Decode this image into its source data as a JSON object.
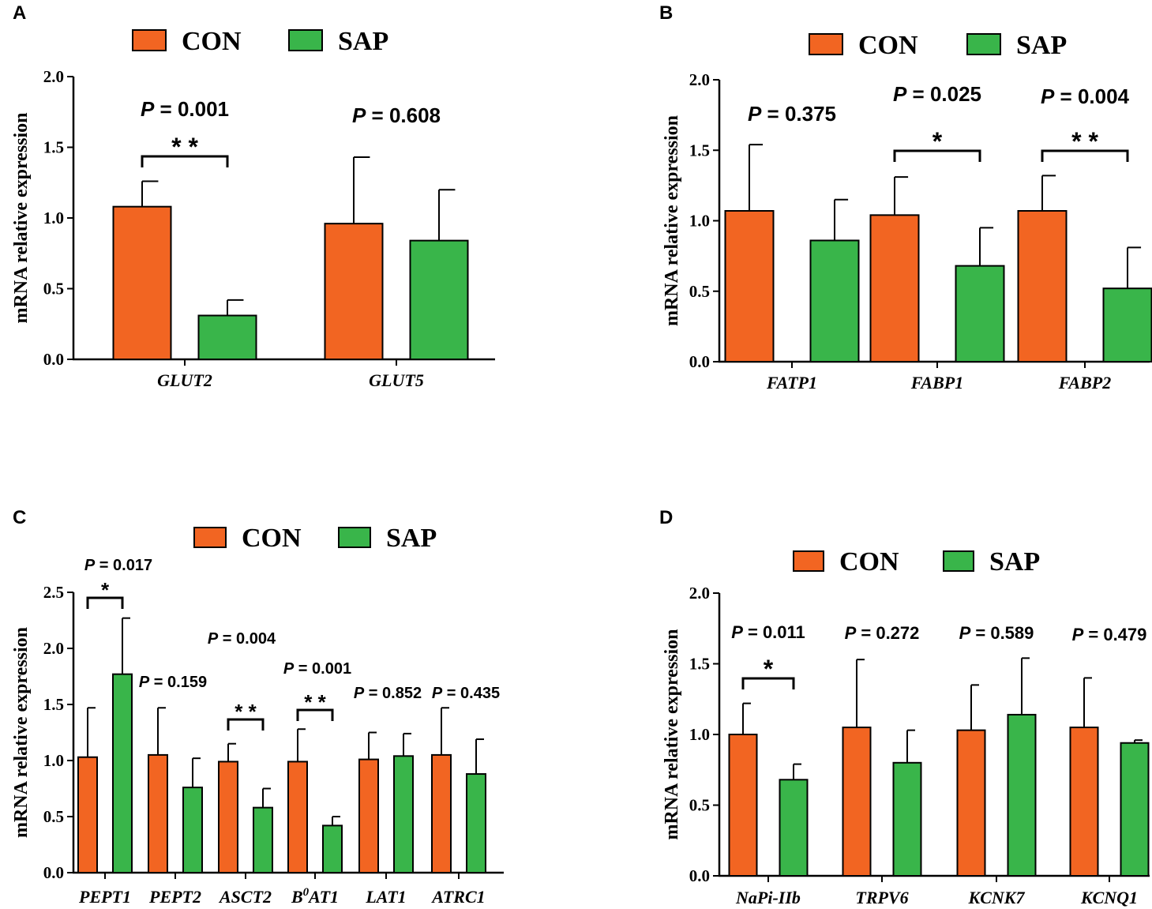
{
  "colors": {
    "con": "#f26522",
    "sap": "#39b54a",
    "stroke": "#000000"
  },
  "chart_data": [
    {
      "panel": "A",
      "type": "bar",
      "ylabel": "mRNA relative expression",
      "ylim": [
        0,
        2.0
      ],
      "yticks": [
        "0.0",
        "0.5",
        "1.0",
        "1.5",
        "2.0"
      ],
      "legend": [
        "CON",
        "SAP"
      ],
      "categories": [
        "GLUT2",
        "GLUT5"
      ],
      "series": [
        {
          "name": "CON",
          "values": [
            1.08,
            0.96
          ],
          "errors": [
            0.18,
            0.47
          ]
        },
        {
          "name": "SAP",
          "values": [
            0.31,
            0.84
          ],
          "errors": [
            0.11,
            0.36
          ]
        }
      ],
      "annotations": [
        {
          "category": 0,
          "p_prefix": "P",
          "p_value": "= 0.001",
          "stars": "**"
        },
        {
          "category": 1,
          "p_prefix": "P",
          "p_value": "= 0.608",
          "stars": ""
        }
      ]
    },
    {
      "panel": "B",
      "type": "bar",
      "ylabel": "mRNA relative expression",
      "ylim": [
        0,
        2.0
      ],
      "yticks": [
        "0.0",
        "0.5",
        "1.0",
        "1.5",
        "2.0"
      ],
      "legend": [
        "CON",
        "SAP"
      ],
      "categories": [
        "FATP1",
        "FABP1",
        "FABP2"
      ],
      "series": [
        {
          "name": "CON",
          "values": [
            1.07,
            1.04,
            1.07
          ],
          "errors": [
            0.47,
            0.27,
            0.25
          ]
        },
        {
          "name": "SAP",
          "values": [
            0.86,
            0.68,
            0.52
          ],
          "errors": [
            0.29,
            0.27,
            0.29
          ]
        }
      ],
      "annotations": [
        {
          "category": 0,
          "p_prefix": "P",
          "p_value": "= 0.375",
          "stars": ""
        },
        {
          "category": 1,
          "p_prefix": "P",
          "p_value": "= 0.025",
          "stars": "*"
        },
        {
          "category": 2,
          "p_prefix": "P",
          "p_value": "= 0.004",
          "stars": "**"
        }
      ]
    },
    {
      "panel": "C",
      "type": "bar",
      "ylabel": "mRNA relative expression",
      "ylim": [
        0,
        2.5
      ],
      "yticks": [
        "0.0",
        "0.5",
        "1.0",
        "1.5",
        "2.0",
        "2.5"
      ],
      "legend": [
        "CON",
        "SAP"
      ],
      "categories": [
        "PEPT1",
        "PEPT2",
        "ASCT2",
        "B",
        "LAT1",
        "ATRC1"
      ],
      "category_sup": {
        "3": {
          "sup": "0",
          "rest": "AT1"
        }
      },
      "series": [
        {
          "name": "CON",
          "values": [
            1.03,
            1.05,
            0.99,
            0.99,
            1.01,
            1.05
          ],
          "errors": [
            0.44,
            0.42,
            0.16,
            0.29,
            0.24,
            0.42
          ]
        },
        {
          "name": "SAP",
          "values": [
            1.77,
            0.76,
            0.58,
            0.42,
            1.04,
            0.88
          ],
          "errors": [
            0.5,
            0.26,
            0.17,
            0.08,
            0.2,
            0.31
          ]
        }
      ],
      "annotations": [
        {
          "category": 0,
          "p_prefix": "P",
          "p_value": "= 0.017",
          "stars": "*"
        },
        {
          "category": 1,
          "p_prefix": "P",
          "p_value": "= 0.159",
          "stars": ""
        },
        {
          "category": 2,
          "p_prefix": "P",
          "p_value": "= 0.004",
          "stars": "**"
        },
        {
          "category": 3,
          "p_prefix": "P",
          "p_value": "= 0.001",
          "stars": "**"
        },
        {
          "category": 4,
          "p_prefix": "P",
          "p_value": "= 0.852",
          "stars": ""
        },
        {
          "category": 5,
          "p_prefix": "P",
          "p_value": "= 0.435",
          "stars": ""
        }
      ]
    },
    {
      "panel": "D",
      "type": "bar",
      "ylabel": "mRNA relative expression",
      "ylim": [
        0,
        2.0
      ],
      "yticks": [
        "0.0",
        "0.5",
        "1.0",
        "1.5",
        "2.0"
      ],
      "legend": [
        "CON",
        "SAP"
      ],
      "categories": [
        "NaPi-IIb",
        "TRPV6",
        "KCNK7",
        "KCNQ1"
      ],
      "series": [
        {
          "name": "CON",
          "values": [
            1.0,
            1.05,
            1.03,
            1.05
          ],
          "errors": [
            0.22,
            0.48,
            0.32,
            0.35
          ]
        },
        {
          "name": "SAP",
          "values": [
            0.68,
            0.8,
            1.14,
            0.94
          ],
          "errors": [
            0.11,
            0.23,
            0.4,
            0.02
          ]
        }
      ],
      "annotations": [
        {
          "category": 0,
          "p_prefix": "P",
          "p_value": "= 0.011",
          "stars": "*"
        },
        {
          "category": 1,
          "p_prefix": "P",
          "p_value": "= 0.272",
          "stars": ""
        },
        {
          "category": 2,
          "p_prefix": "P",
          "p_value": "= 0.589",
          "stars": ""
        },
        {
          "category": 3,
          "p_prefix": "P",
          "p_value": "= 0.479",
          "stars": ""
        }
      ]
    }
  ]
}
